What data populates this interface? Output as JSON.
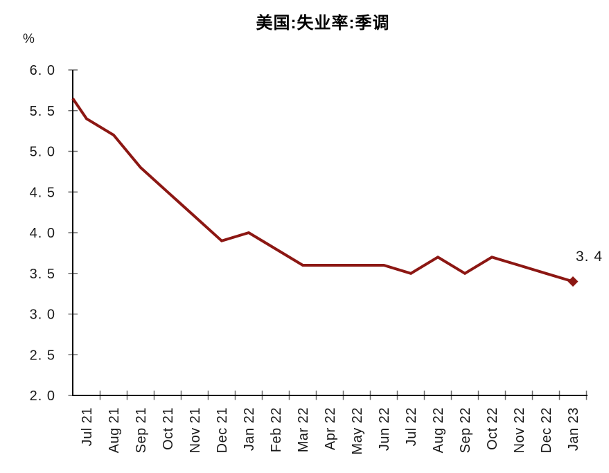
{
  "chart_data": {
    "type": "line",
    "title": "美国:失业率:季调",
    "ylabel": "%",
    "xlabel": "",
    "categories": [
      "Jul 21",
      "Aug 21",
      "Sep 21",
      "Oct 21",
      "Nov 21",
      "Dec 21",
      "Jan 22",
      "Feb 22",
      "Mar 22",
      "Apr 22",
      "May 22",
      "Jun 22",
      "Jul 22",
      "Aug 22",
      "Sep 22",
      "Oct 22",
      "Nov 22",
      "Dec 22",
      "Jan 23"
    ],
    "values": [
      5.4,
      5.2,
      4.8,
      4.5,
      4.2,
      3.9,
      4.0,
      3.8,
      3.6,
      3.6,
      3.6,
      3.6,
      3.5,
      3.7,
      3.5,
      3.7,
      3.6,
      3.5,
      3.4
    ],
    "ylim": [
      2.0,
      6.0
    ],
    "ytick_step": 0.5,
    "ytick_labels": [
      "6. 0",
      "5. 5",
      "5. 0",
      "4. 5",
      "4. 0",
      "3. 5",
      "3. 0",
      "2. 5",
      "2. 0"
    ],
    "xtick_label_rotation_deg": -90,
    "grid": false,
    "legend": "none",
    "tick_style": "cross",
    "left_edge_entry_value": 5.65,
    "last_point_marker": "diamond",
    "last_point_label": "3. 4",
    "colors": {
      "line": "#8C1713",
      "marker": "#8C1713",
      "axis": "#000000",
      "tick": "#6e6e6e",
      "text": "#1a1a1a",
      "title": "#000000"
    }
  }
}
